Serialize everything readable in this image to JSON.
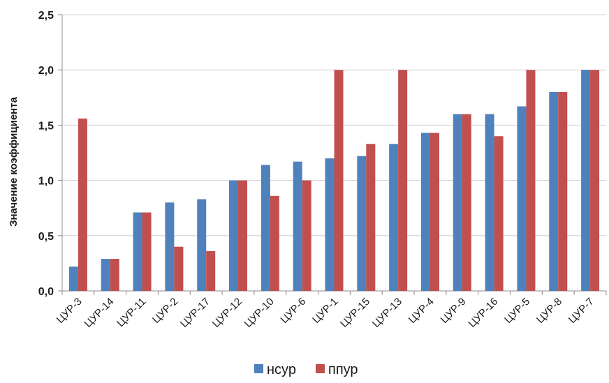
{
  "chart_data": {
    "type": "bar",
    "title": "",
    "xlabel": "",
    "ylabel": "Значение коэффициента",
    "ylim": [
      0,
      2.5
    ],
    "yticks": [
      "0,0",
      "0,5",
      "1,0",
      "1,5",
      "2,0",
      "2,5"
    ],
    "ytick_values": [
      0,
      0.5,
      1.0,
      1.5,
      2.0,
      2.5
    ],
    "grid": true,
    "legend_position": "bottom",
    "categories": [
      "ЦУР-3",
      "ЦУР-14",
      "ЦУР-11",
      "ЦУР-2",
      "ЦУР-17",
      "ЦУР-12",
      "ЦУР-10",
      "ЦУР-6",
      "ЦУР-1",
      "ЦУР-15",
      "ЦУР-13",
      "ЦУР-4",
      "ЦУР-9",
      "ЦУР-16",
      "ЦУР-5",
      "ЦУР-8",
      "ЦУР-7"
    ],
    "series": [
      {
        "name": "нсур",
        "color": "#4F81BD",
        "values": [
          0.22,
          0.29,
          0.71,
          0.8,
          0.83,
          1.0,
          1.14,
          1.17,
          1.2,
          1.22,
          1.33,
          1.43,
          1.6,
          1.6,
          1.67,
          1.8,
          2.0
        ]
      },
      {
        "name": "ппур",
        "color": "#C0504D",
        "values": [
          1.56,
          0.29,
          0.71,
          0.4,
          0.36,
          1.0,
          0.86,
          1.0,
          2.0,
          1.33,
          2.0,
          1.43,
          1.6,
          1.4,
          2.0,
          1.8,
          2.0
        ]
      }
    ]
  }
}
